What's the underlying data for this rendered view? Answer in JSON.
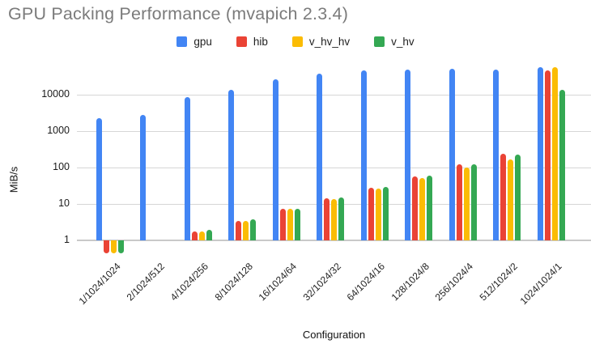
{
  "title": "GPU Packing Performance (mvapich 2.3.4)",
  "colors": {
    "gpu": "#4285F4",
    "hib": "#EA4335",
    "v_hv_hv": "#FBBC04",
    "v_hv": "#34A853",
    "gridline": "#d6d6d6",
    "baseline": "#c9c9c9",
    "title_text": "#7b7b7b"
  },
  "chart_data": {
    "type": "bar",
    "title": "GPU Packing Performance (mvapich 2.3.4)",
    "xlabel": "Configuration",
    "ylabel": "MiB/s",
    "y_scale": "log",
    "y_ticks": [
      1,
      10,
      100,
      1000,
      10000
    ],
    "ylim": [
      0.4,
      85000
    ],
    "grid": true,
    "legend_position": "top",
    "baseline_value": 1,
    "categories": [
      "1/1024/1024",
      "2/1024/512",
      "4/1024/256",
      "8/1024/128",
      "16/1024/64",
      "32/1024/32",
      "64/1024/16",
      "128/1024/8",
      "256/1024/4",
      "512/1024/2",
      "1024/1024/1"
    ],
    "series": [
      {
        "name": "gpu",
        "color": "#4285F4",
        "values": [
          2300,
          2800,
          8600,
          13500,
          26500,
          37500,
          46000,
          48000,
          52000,
          48000,
          56000
        ]
      },
      {
        "name": "hib",
        "color": "#EA4335",
        "values": [
          0.45,
          null,
          1.8,
          3.5,
          7.3,
          14.5,
          28,
          57,
          120,
          235,
          46000
        ]
      },
      {
        "name": "v_hv_hv",
        "color": "#FBBC04",
        "values": [
          0.45,
          null,
          1.8,
          3.5,
          7.5,
          13.5,
          26,
          52,
          100,
          165,
          57000
        ]
      },
      {
        "name": "v_hv",
        "color": "#34A853",
        "values": [
          0.45,
          null,
          1.9,
          3.7,
          7.5,
          15,
          29,
          59,
          125,
          230,
          13500
        ]
      }
    ]
  }
}
